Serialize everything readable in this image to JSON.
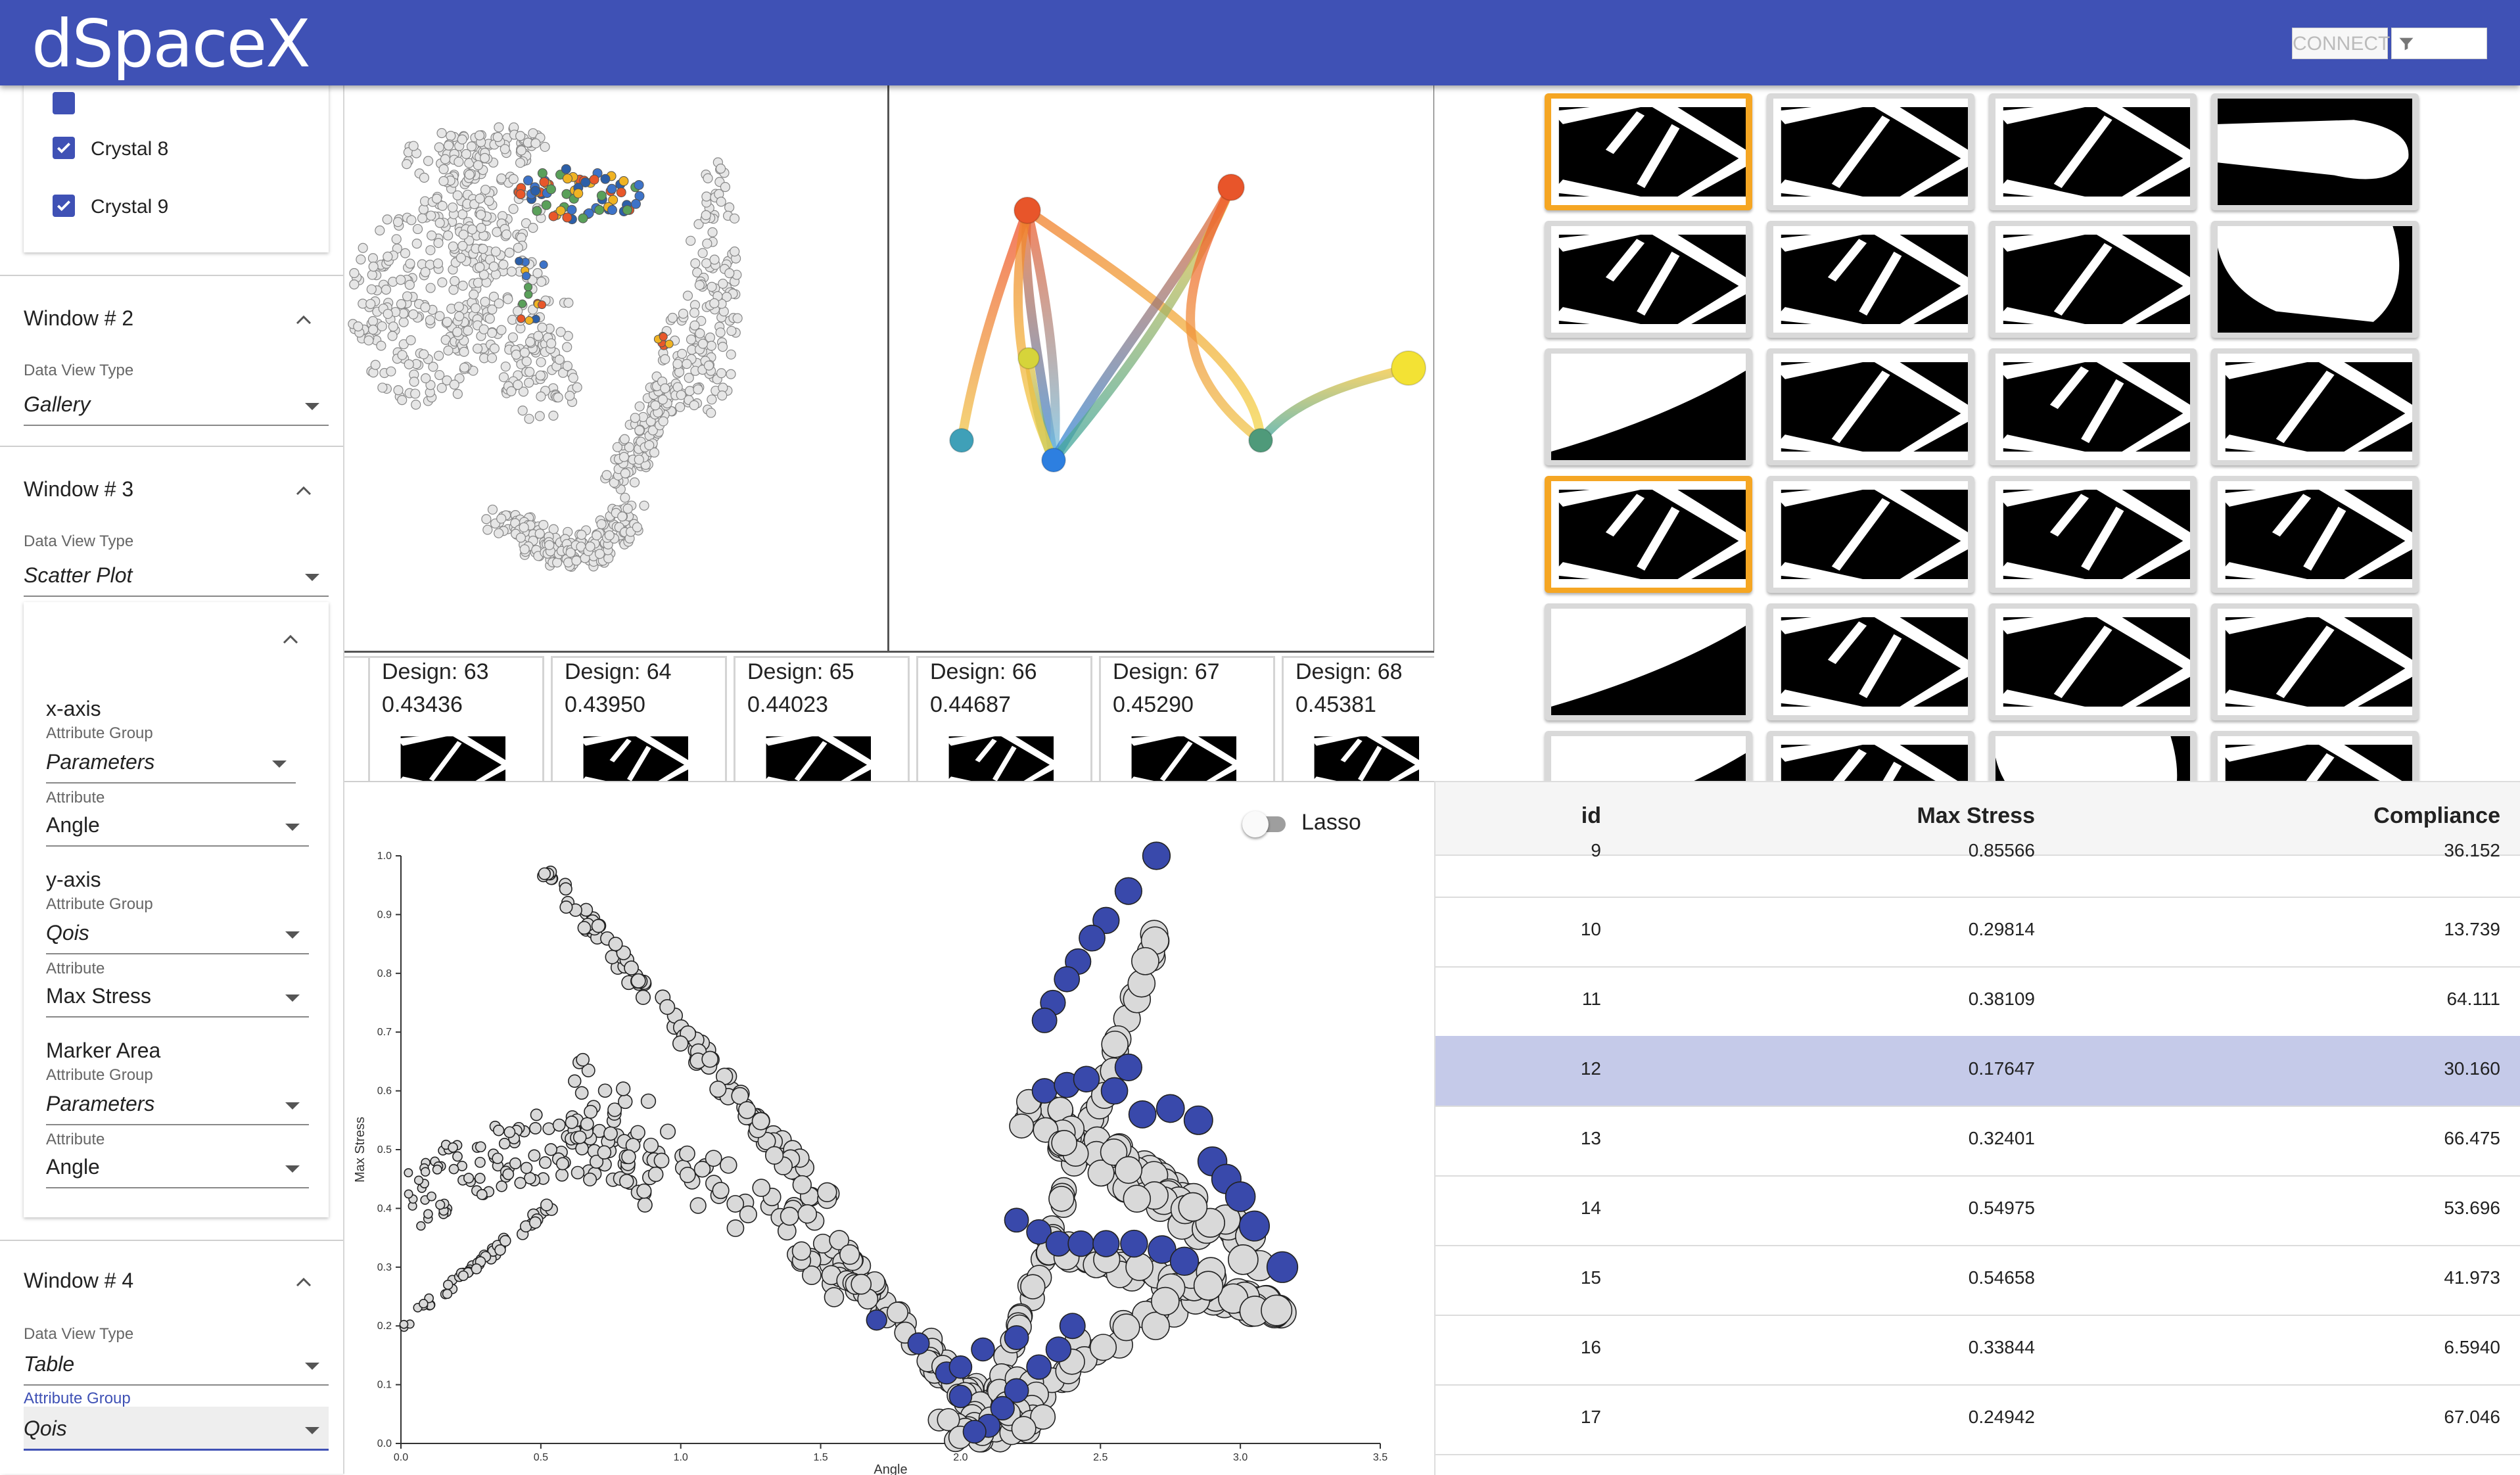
{
  "app": {
    "title": "dSpaceX",
    "connect_label": "CONNECT",
    "filter_icon": "filter-icon"
  },
  "colors": {
    "primary": "#3f51b5",
    "selected_highlight": "#f5a623",
    "row_selected": "#c5cae9",
    "point_selected": "#3949ab"
  },
  "sidebar": {
    "crystals": [
      {
        "label": "Crystal 8",
        "checked": true
      },
      {
        "label": "Crystal 9",
        "checked": true
      }
    ],
    "windows": [
      {
        "title": "Window # 2",
        "data_view_type_label": "Data View Type",
        "data_view_type": "Gallery"
      },
      {
        "title": "Window # 3",
        "data_view_type_label": "Data View Type",
        "data_view_type": "Scatter Plot",
        "config": {
          "x_axis": {
            "heading": "x-axis",
            "group_label": "Attribute Group",
            "group": "Parameters",
            "attr_label": "Attribute",
            "attr": "Angle"
          },
          "y_axis": {
            "heading": "y-axis",
            "group_label": "Attribute Group",
            "group": "Qois",
            "attr_label": "Attribute",
            "attr": "Max Stress"
          },
          "marker": {
            "heading": "Marker Area",
            "group_label": "Attribute Group",
            "group": "Parameters",
            "attr_label": "Attribute",
            "attr": "Angle"
          }
        }
      },
      {
        "title": "Window # 4",
        "data_view_type_label": "Data View Type",
        "data_view_type": "Table",
        "group_label": "Attribute Group",
        "group": "Qois"
      }
    ]
  },
  "design_strip": [
    {
      "title": "Design: 63",
      "value": "0.43436"
    },
    {
      "title": "Design: 64",
      "value": "0.43950"
    },
    {
      "title": "Design: 65",
      "value": "0.44023"
    },
    {
      "title": "Design: 66",
      "value": "0.44687"
    },
    {
      "title": "Design: 67",
      "value": "0.45290"
    },
    {
      "title": "Design: 68",
      "value": "0.45381"
    }
  ],
  "gallery": {
    "columns": 4,
    "rows_visible": 6,
    "selected_cells": [
      0,
      12
    ]
  },
  "scatter": {
    "lasso_label": "Lasso",
    "lasso_on": false,
    "chart_data": {
      "type": "scatter",
      "xlabel": "Angle",
      "ylabel": "Max Stress",
      "xlim": [
        0.0,
        3.5
      ],
      "ylim": [
        0.0,
        1.0
      ],
      "xticks": [
        "0.0",
        "0.5",
        "1.0",
        "1.5",
        "2.0",
        "2.5",
        "3.0",
        "3.5"
      ],
      "yticks": [
        "0.0",
        "0.1",
        "0.2",
        "0.3",
        "0.4",
        "0.5",
        "0.6",
        "0.7",
        "0.8",
        "0.9",
        "1.0"
      ],
      "highlighted_series": [
        {
          "x": 2.7,
          "y": 1.0
        },
        {
          "x": 2.6,
          "y": 0.94
        },
        {
          "x": 2.52,
          "y": 0.89
        },
        {
          "x": 2.47,
          "y": 0.86
        },
        {
          "x": 2.42,
          "y": 0.82
        },
        {
          "x": 2.38,
          "y": 0.79
        },
        {
          "x": 2.33,
          "y": 0.75
        },
        {
          "x": 2.3,
          "y": 0.72
        },
        {
          "x": 2.3,
          "y": 0.6
        },
        {
          "x": 2.38,
          "y": 0.61
        },
        {
          "x": 2.45,
          "y": 0.62
        },
        {
          "x": 2.55,
          "y": 0.6
        },
        {
          "x": 2.6,
          "y": 0.64
        },
        {
          "x": 2.65,
          "y": 0.56
        },
        {
          "x": 2.75,
          "y": 0.57
        },
        {
          "x": 2.85,
          "y": 0.55
        },
        {
          "x": 2.9,
          "y": 0.48
        },
        {
          "x": 2.95,
          "y": 0.45
        },
        {
          "x": 3.0,
          "y": 0.42
        },
        {
          "x": 3.05,
          "y": 0.37
        },
        {
          "x": 2.2,
          "y": 0.38
        },
        {
          "x": 2.28,
          "y": 0.36
        },
        {
          "x": 2.35,
          "y": 0.34
        },
        {
          "x": 2.43,
          "y": 0.34
        },
        {
          "x": 2.52,
          "y": 0.34
        },
        {
          "x": 2.62,
          "y": 0.34
        },
        {
          "x": 2.72,
          "y": 0.33
        },
        {
          "x": 2.8,
          "y": 0.31
        },
        {
          "x": 3.15,
          "y": 0.3
        },
        {
          "x": 2.4,
          "y": 0.2
        },
        {
          "x": 2.35,
          "y": 0.16
        },
        {
          "x": 2.28,
          "y": 0.13
        },
        {
          "x": 2.2,
          "y": 0.09
        },
        {
          "x": 2.15,
          "y": 0.06
        },
        {
          "x": 2.1,
          "y": 0.03
        },
        {
          "x": 2.05,
          "y": 0.02
        },
        {
          "x": 2.0,
          "y": 0.08
        },
        {
          "x": 1.95,
          "y": 0.12
        },
        {
          "x": 1.85,
          "y": 0.17
        },
        {
          "x": 1.7,
          "y": 0.21
        },
        {
          "x": 2.0,
          "y": 0.13
        },
        {
          "x": 2.08,
          "y": 0.16
        },
        {
          "x": 2.2,
          "y": 0.18
        }
      ]
    }
  },
  "table": {
    "columns": [
      "id",
      "Max Stress",
      "Compliance"
    ],
    "selected_id": "12",
    "rows": [
      {
        "id": "9",
        "max_stress": "0.85566",
        "compliance": "36.152"
      },
      {
        "id": "10",
        "max_stress": "0.29814",
        "compliance": "13.739"
      },
      {
        "id": "11",
        "max_stress": "0.38109",
        "compliance": "64.111"
      },
      {
        "id": "12",
        "max_stress": "0.17647",
        "compliance": "30.160"
      },
      {
        "id": "13",
        "max_stress": "0.32401",
        "compliance": "66.475"
      },
      {
        "id": "14",
        "max_stress": "0.54975",
        "compliance": "53.696"
      },
      {
        "id": "15",
        "max_stress": "0.54658",
        "compliance": "41.973"
      },
      {
        "id": "16",
        "max_stress": "0.33844",
        "compliance": "6.5940"
      },
      {
        "id": "17",
        "max_stress": "0.24942",
        "compliance": "67.046"
      }
    ]
  }
}
